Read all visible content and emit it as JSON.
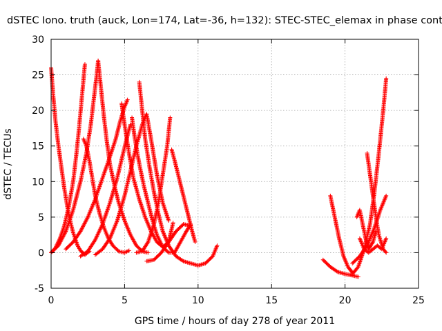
{
  "chart_data": {
    "type": "scatter",
    "title": "dSTEC Iono. truth (auck, Lon=174, Lat=-36, h=132): STEC-STEC_elemax in phase cont",
    "xlabel": "GPS time / hours of day 278 of year 2011",
    "ylabel": "dSTEC  / TECUs",
    "xlim": [
      0,
      25
    ],
    "ylim": [
      -5,
      30
    ],
    "xticks": [
      0,
      5,
      10,
      15,
      20,
      25
    ],
    "yticks": [
      -5,
      0,
      5,
      10,
      15,
      20,
      25,
      30
    ],
    "grid": true,
    "marker": "+",
    "color": "#ff0000",
    "series": [
      {
        "x": [
          0.0,
          0.15,
          0.3,
          0.5,
          0.7,
          0.9,
          1.1,
          1.3,
          1.5,
          1.8,
          2.0,
          2.3,
          2.6
        ],
        "y": [
          26.0,
          22.0,
          18.5,
          15.0,
          12.0,
          9.0,
          6.5,
          4.5,
          2.8,
          1.0,
          0.3,
          -0.3,
          0.2
        ]
      },
      {
        "x": [
          0.0,
          0.3,
          0.6,
          0.9,
          1.2,
          1.5,
          1.7,
          1.9,
          2.1,
          2.3
        ],
        "y": [
          0.0,
          0.7,
          2.0,
          3.8,
          6.5,
          10.0,
          13.5,
          17.5,
          22.0,
          26.5
        ]
      },
      {
        "x": [
          0.0,
          0.5,
          1.0,
          1.5,
          2.0,
          2.4,
          2.7,
          2.9,
          3.1,
          3.2
        ],
        "y": [
          0.0,
          1.0,
          3.0,
          6.0,
          10.0,
          14.0,
          18.0,
          21.5,
          25.0,
          27.0
        ]
      },
      {
        "x": [
          2.2,
          2.4,
          2.6,
          2.8,
          3.0,
          3.3,
          3.6,
          3.9,
          4.2,
          4.6,
          5.0,
          5.3
        ],
        "y": [
          16.0,
          15.0,
          13.0,
          10.5,
          8.0,
          5.5,
          3.5,
          2.0,
          1.0,
          0.2,
          0.0,
          0.3
        ]
      },
      {
        "x": [
          3.2,
          3.4,
          3.6,
          3.8,
          4.0,
          4.3,
          4.6,
          5.0,
          5.4,
          5.8,
          6.2,
          6.6
        ],
        "y": [
          27.0,
          23.0,
          19.0,
          15.5,
          12.5,
          9.5,
          7.0,
          4.5,
          2.5,
          1.0,
          0.2,
          0.0
        ]
      },
      {
        "x": [
          1.0,
          1.5,
          2.0,
          2.5,
          3.0,
          3.5,
          4.0,
          4.4,
          4.7,
          5.0,
          5.2
        ],
        "y": [
          0.5,
          1.5,
          3.0,
          5.0,
          7.5,
          10.5,
          13.5,
          16.0,
          18.5,
          20.5,
          21.5
        ]
      },
      {
        "x": [
          2.0,
          2.5,
          3.0,
          3.5,
          4.0,
          4.5,
          4.9,
          5.2,
          5.4
        ],
        "y": [
          -0.5,
          0.2,
          1.8,
          4.0,
          7.0,
          10.5,
          14.0,
          16.5,
          18.0
        ]
      },
      {
        "x": [
          4.8,
          5.0,
          5.3,
          5.6,
          6.0,
          6.4,
          6.8,
          7.2,
          7.6,
          8.0,
          8.3
        ],
        "y": [
          21.0,
          18.0,
          14.0,
          10.5,
          7.5,
          5.0,
          3.0,
          1.5,
          0.8,
          1.5,
          4.2
        ]
      },
      {
        "x": [
          3.0,
          3.5,
          4.0,
          4.5,
          5.0,
          5.4,
          5.8,
          6.2,
          6.5,
          6.8,
          7.2,
          7.6,
          8.0
        ],
        "y": [
          -0.3,
          0.5,
          2.0,
          4.5,
          8.0,
          11.5,
          15.0,
          18.0,
          19.5,
          16.0,
          11.0,
          7.0,
          4.5
        ]
      },
      {
        "x": [
          5.5,
          5.7,
          6.0,
          6.3,
          6.6,
          6.9,
          7.2,
          7.6,
          8.0,
          8.4,
          8.8,
          9.2,
          9.5
        ],
        "y": [
          19.0,
          16.0,
          12.5,
          9.5,
          7.0,
          4.5,
          2.5,
          0.8,
          0.0,
          0.0,
          1.5,
          3.0,
          4.0
        ]
      },
      {
        "x": [
          6.0,
          6.2,
          6.4,
          6.7,
          7.0,
          7.3,
          7.6,
          8.0,
          8.5,
          9.0,
          9.5,
          10.0,
          10.5,
          11.0,
          11.3
        ],
        "y": [
          24.0,
          20.0,
          16.0,
          12.0,
          8.5,
          5.5,
          3.0,
          1.0,
          -0.5,
          -1.2,
          -1.5,
          -1.8,
          -1.5,
          -0.5,
          1.0
        ]
      },
      {
        "x": [
          5.8,
          6.2,
          6.6,
          7.0,
          7.3,
          7.6,
          7.9,
          8.1
        ],
        "y": [
          0.0,
          0.2,
          1.5,
          4.0,
          7.0,
          11.0,
          15.0,
          19.0
        ]
      },
      {
        "x": [
          6.5,
          7.0,
          7.5,
          8.0,
          8.5,
          9.0,
          9.5
        ],
        "y": [
          -1.2,
          -1.0,
          0.0,
          1.5,
          3.0,
          4.0,
          3.8
        ]
      },
      {
        "x": [
          8.2,
          8.4,
          8.7,
          9.0,
          9.3,
          9.6,
          9.8
        ],
        "y": [
          14.5,
          13.0,
          10.5,
          8.0,
          5.5,
          3.0,
          1.5
        ]
      },
      {
        "x": [
          18.5,
          19.0,
          19.5,
          20.0,
          20.5,
          20.9
        ],
        "y": [
          -1.0,
          -2.0,
          -2.7,
          -3.0,
          -3.2,
          -3.4
        ]
      },
      {
        "x": [
          19.0,
          19.3,
          19.6,
          19.9,
          20.2,
          20.5
        ],
        "y": [
          8.0,
          5.0,
          2.0,
          -0.5,
          -2.0,
          -2.8
        ]
      },
      {
        "x": [
          20.5,
          20.9,
          21.3,
          21.7,
          22.0,
          22.3,
          22.6,
          22.8
        ],
        "y": [
          -3.0,
          -2.0,
          0.5,
          4.0,
          8.5,
          14.0,
          20.0,
          24.5
        ]
      },
      {
        "x": [
          21.5,
          21.7,
          21.9,
          22.1,
          22.3,
          22.6,
          22.8
        ],
        "y": [
          14.0,
          11.0,
          8.0,
          5.0,
          2.5,
          0.5,
          0.0
        ]
      },
      {
        "x": [
          20.8,
          21.0,
          21.2,
          21.4,
          21.6,
          21.9,
          22.1
        ],
        "y": [
          5.0,
          6.0,
          4.0,
          2.0,
          0.5,
          1.5,
          3.0
        ]
      },
      {
        "x": [
          20.5,
          21.0,
          21.5,
          22.0,
          22.4,
          22.8
        ],
        "y": [
          -1.5,
          -0.5,
          1.0,
          3.5,
          6.0,
          8.0
        ]
      },
      {
        "x": [
          21.0,
          21.3,
          21.6,
          21.9,
          22.2,
          22.5,
          22.8
        ],
        "y": [
          2.0,
          0.5,
          0.0,
          0.5,
          1.0,
          0.5,
          2.0
        ]
      }
    ]
  }
}
